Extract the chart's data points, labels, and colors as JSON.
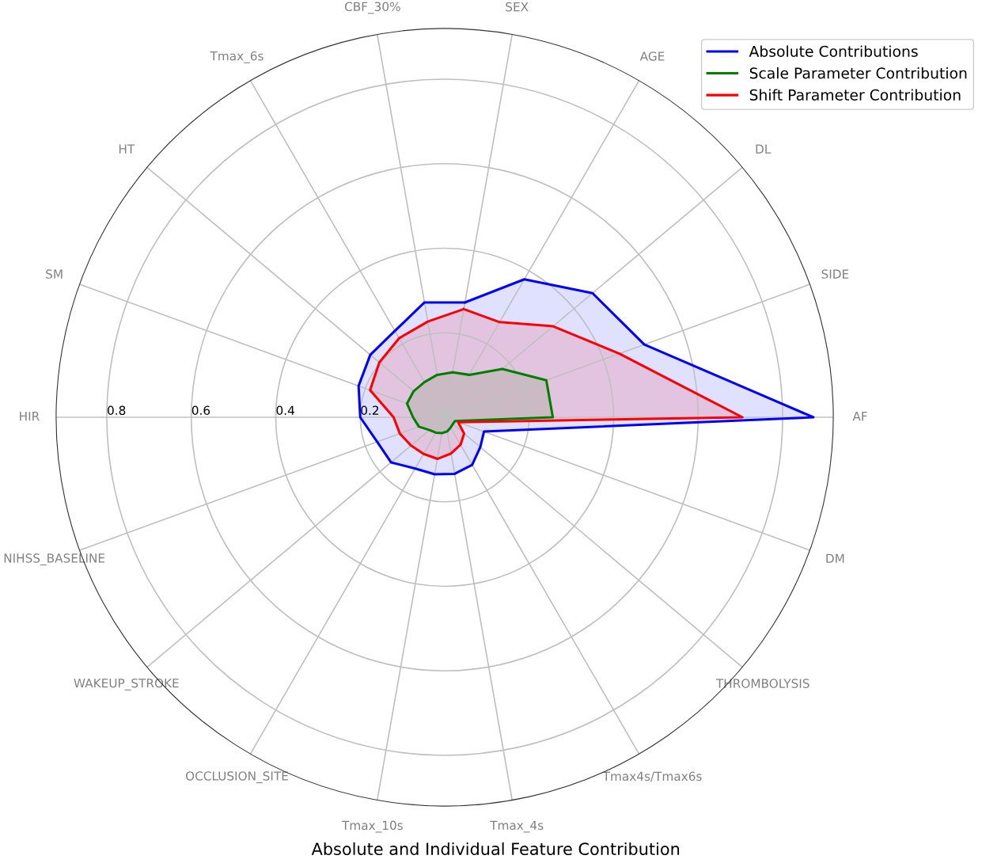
{
  "chart_data": {
    "type": "radar",
    "title": "Absolute and Individual Feature Contribution",
    "categories": [
      "SEX",
      "AGE",
      "DL",
      "SIDE",
      "AF",
      "DM",
      "THROMBOLYSIS",
      "Tmax4s/Tmax6s",
      "Tmax_4s",
      "Tmax_10s",
      "OCCLUSION_SITE",
      "WAKEUP_STROKE",
      "NIHSS_BASELINE",
      "HIR",
      "SM",
      "HT",
      "Tmax_6s",
      "CBF_30%"
    ],
    "series": [
      {
        "name": "Absolute Contributions",
        "color": "#0000ff",
        "values": [
          0.276,
          0.377,
          0.457,
          0.503,
          0.873,
          0.099,
          0.11,
          0.13,
          0.136,
          0.137,
          0.14,
          0.166,
          0.17,
          0.2,
          0.217,
          0.23,
          0.236,
          0.276
        ]
      },
      {
        "name": "Scale Parameter Contribution",
        "color": "#008000",
        "values": [
          0.108,
          0.116,
          0.178,
          0.256,
          0.256,
          0.026,
          0.025,
          0.028,
          0.034,
          0.038,
          0.042,
          0.047,
          0.065,
          0.075,
          0.095,
          0.096,
          0.096,
          0.102
        ]
      },
      {
        "name": "Shift Parameter Contribution",
        "color": "#ff0000",
        "values": [
          0.26,
          0.26,
          0.335,
          0.44,
          0.705,
          0.034,
          0.06,
          0.075,
          0.087,
          0.1,
          0.1,
          0.104,
          0.113,
          0.121,
          0.188,
          0.202,
          0.216,
          0.23
        ]
      }
    ],
    "ylim": [
      0,
      0.92
    ],
    "yticks": [
      0.2,
      0.4,
      0.6,
      0.8
    ],
    "grid": true,
    "legend": "top right"
  }
}
